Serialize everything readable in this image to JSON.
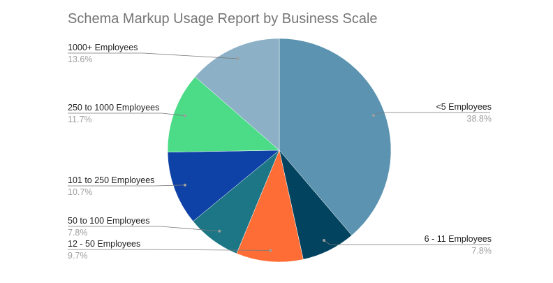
{
  "chart_data": {
    "type": "pie",
    "title": "Schema Markup Usage Report by Business Scale",
    "start_angle_deg": 0,
    "direction": "clockwise",
    "slices": [
      {
        "label": "<5 Employees",
        "value": 38.8,
        "value_label": "38.8%",
        "color": "#5b93b1"
      },
      {
        "label": "6 - 11 Employees",
        "value": 7.8,
        "value_label": "7.8%",
        "color": "#02435f"
      },
      {
        "label": "12 - 50 Employees",
        "value": 9.7,
        "value_label": "9.7%",
        "color": "#fe6d35"
      },
      {
        "label": "50 to 100 Employees",
        "value": 7.8,
        "value_label": "7.8%",
        "color": "#1c7685"
      },
      {
        "label": "101 to 250 Employees",
        "value": 10.7,
        "value_label": "10.7%",
        "color": "#0f42a7"
      },
      {
        "label": "250 to 1000 Employees",
        "value": 11.7,
        "value_label": "11.7%",
        "color": "#4cdb87"
      },
      {
        "label": "1000+ Employees",
        "value": 13.6,
        "value_label": "13.6%",
        "color": "#8cb1c6"
      }
    ],
    "legend": "none",
    "labels": "outside-with-leader-lines"
  }
}
